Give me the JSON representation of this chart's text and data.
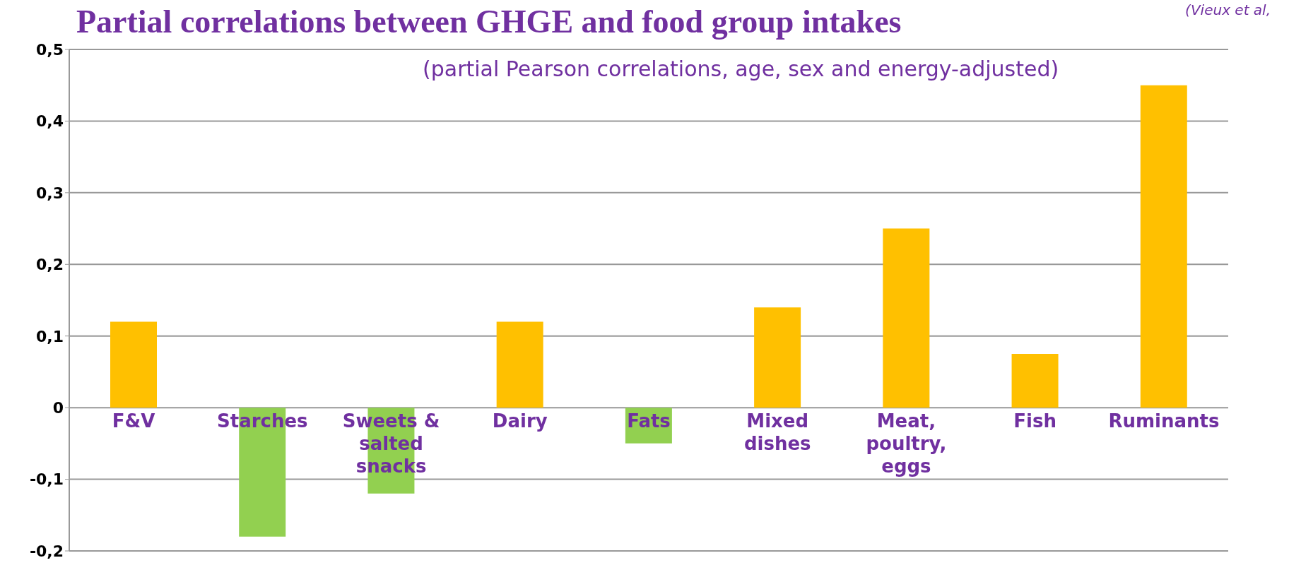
{
  "chart_data": {
    "type": "bar",
    "title": "Partial correlations between GHGE and food group intakes",
    "subtitle": "(partial Pearson correlations, age, sex and energy-adjusted)",
    "annotations": [
      "(Vieux et al,"
    ],
    "categories": [
      "F&V",
      "Starches",
      "Sweets & salted snacks",
      "Dairy",
      "Fats",
      "Mixed dishes",
      "Meat, poultry, eggs",
      "Fish",
      "Ruminants"
    ],
    "values": [
      0.12,
      -0.18,
      -0.12,
      0.12,
      -0.05,
      0.14,
      0.25,
      0.075,
      0.45
    ],
    "colors": [
      "#ffc000",
      "#92d050",
      "#92d050",
      "#ffc000",
      "#92d050",
      "#ffc000",
      "#ffc000",
      "#ffc000",
      "#ffc000"
    ],
    "ylim": [
      -0.2,
      0.5
    ],
    "yticks": [
      {
        "value": -0.2,
        "label": "-0,2"
      },
      {
        "value": -0.1,
        "label": "-0,1"
      },
      {
        "value": 0,
        "label": "0"
      },
      {
        "value": 0.1,
        "label": "0,1"
      },
      {
        "value": 0.2,
        "label": "0,2"
      },
      {
        "value": 0.3,
        "label": "0,3"
      },
      {
        "value": 0.4,
        "label": "0,4"
      },
      {
        "value": 0.5,
        "label": "0,5"
      }
    ],
    "grid": "y",
    "legend": false
  }
}
